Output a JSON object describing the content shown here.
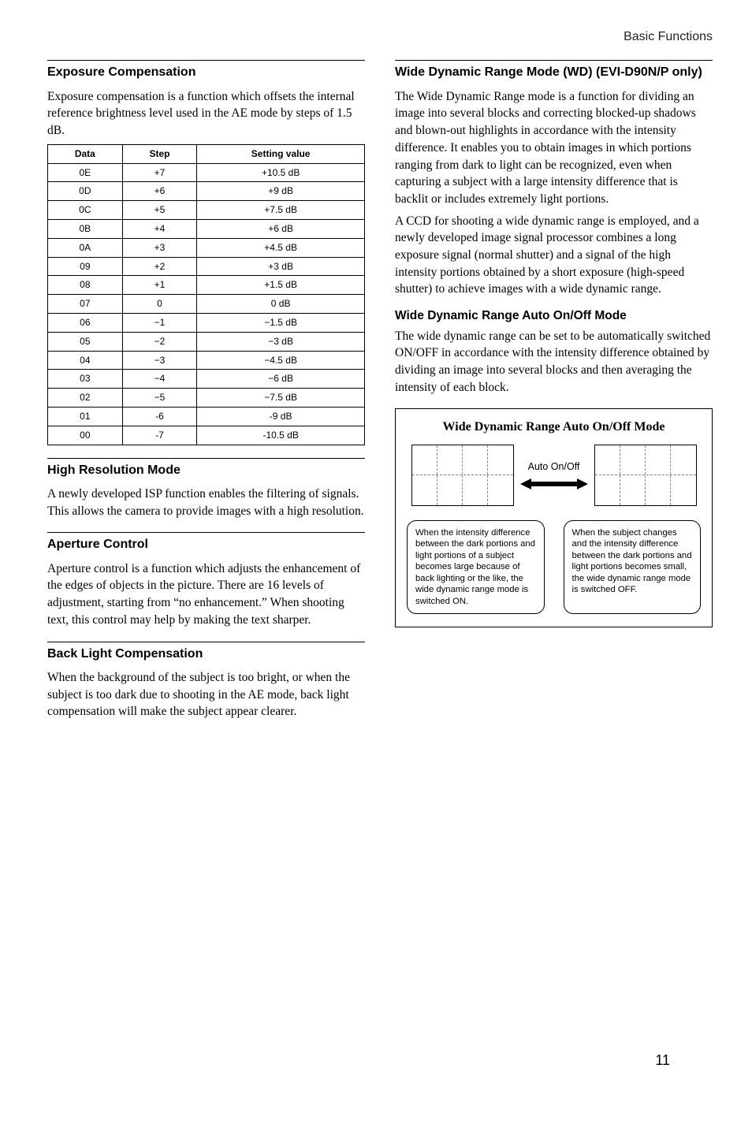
{
  "header": {
    "breadcrumb": "Basic Functions"
  },
  "page_number": "11",
  "left": {
    "exposure_comp": {
      "title": "Exposure Compensation",
      "body": "Exposure compensation is a function which offsets the internal reference brightness level used in the AE mode by steps of 1.5 dB.",
      "table": {
        "headers": [
          "Data",
          "Step",
          "Setting value"
        ],
        "rows": [
          [
            "0E",
            "+7",
            "+10.5 dB"
          ],
          [
            "0D",
            "+6",
            "+9 dB"
          ],
          [
            "0C",
            "+5",
            "+7.5 dB"
          ],
          [
            "0B",
            "+4",
            "+6 dB"
          ],
          [
            "0A",
            "+3",
            "+4.5 dB"
          ],
          [
            "09",
            "+2",
            "+3 dB"
          ],
          [
            "08",
            "+1",
            "+1.5 dB"
          ],
          [
            "07",
            "0",
            "0 dB"
          ],
          [
            "06",
            "−1",
            "−1.5 dB"
          ],
          [
            "05",
            "−2",
            "−3 dB"
          ],
          [
            "04",
            "−3",
            "−4.5 dB"
          ],
          [
            "03",
            "−4",
            "−6 dB"
          ],
          [
            "02",
            "−5",
            "−7.5 dB"
          ],
          [
            "01",
            "-6",
            "-9 dB"
          ],
          [
            "00",
            "-7",
            "-10.5 dB"
          ]
        ]
      }
    },
    "high_res": {
      "title": "High Resolution Mode",
      "body": "A newly developed ISP function enables the filtering of signals. This allows the camera to provide images with a high resolution."
    },
    "aperture": {
      "title": "Aperture Control",
      "body": "Aperture control is a function which adjusts the enhancement of the edges of objects in the picture. There are 16 levels of adjustment, starting from “no enhancement.” When shooting text, this control may help by making the text sharper."
    },
    "backlight": {
      "title": "Back Light Compensation",
      "body": "When the background of the subject is too bright, or when the subject is too dark due to shooting in the AE mode, back light compensation will make the subject appear clearer."
    }
  },
  "right": {
    "wdr": {
      "title": "Wide Dynamic Range Mode (WD) (EVI-D90N/P only)",
      "body1": "The Wide Dynamic Range mode is a function for dividing an image into several blocks and correcting blocked-up shadows and blown-out highlights in accordance with the intensity difference. It enables you to obtain images in which portions ranging from dark to light can be recognized, even when capturing a subject with a large intensity difference that is backlit or includes extremely light portions.",
      "body2": "A CCD for shooting a wide dynamic range is employed, and a newly developed image signal processor combines a long exposure signal (normal shutter) and a signal of the high intensity portions obtained by a short exposure (high-speed shutter) to achieve images with a wide dynamic range."
    },
    "wdr_auto": {
      "title": "Wide Dynamic Range Auto On/Off Mode",
      "body": "The wide dynamic range can be set to be automatically switched ON/OFF in accordance with the intensity difference obtained by dividing an image into several blocks and then averaging the intensity of each block."
    },
    "diagram": {
      "title": "Wide Dynamic Range Auto On/Off Mode",
      "center_label": "Auto On/Off",
      "left_box": "When the intensity difference between the dark portions and light portions of a subject becomes large because of back lighting or the like, the wide dynamic range mode is switched ON.",
      "right_box": "When the subject changes and the intensity difference between the dark portions and light portions becomes small, the wide dynamic range mode is switched OFF."
    }
  },
  "style": {
    "font_body": "Georgia, 'Times New Roman', serif",
    "font_sans": "Arial, Helvetica, sans-serif",
    "text_color": "#000000",
    "bg_color": "#ffffff",
    "border_color": "#000000",
    "dash_color": "#888888"
  }
}
